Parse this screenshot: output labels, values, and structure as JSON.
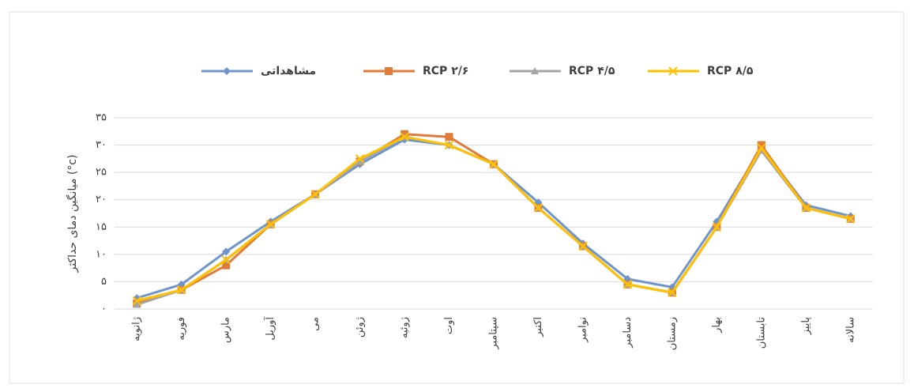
{
  "chart_data": {
    "type": "line",
    "y_label": "میانگین دمای حداکثر (°c)",
    "categories": [
      "ژانویه",
      "فوریه",
      "مارس",
      "آوریل",
      "می",
      "ژوئن",
      "ژوئیه",
      "اوت",
      "سپتامبر",
      "اکتبر",
      "نوامبر",
      "دسامبر",
      "زمستان",
      "بهار",
      "تابستان",
      "پاییز",
      "سالانه"
    ],
    "series": [
      {
        "name": "مشاهداتی",
        "color": "#6f95cc",
        "marker": "diamond",
        "values": [
          2.0,
          4.5,
          10.5,
          16,
          21,
          26.5,
          31,
          30,
          26.5,
          19.5,
          12,
          5.5,
          4,
          16,
          29.5,
          19,
          17
        ]
      },
      {
        "name": "RCP ۲/۶",
        "color": "#e07b39",
        "marker": "square",
        "values": [
          1.0,
          3.5,
          8,
          15.5,
          21,
          27,
          32,
          31.5,
          26.5,
          18.5,
          11.5,
          4.5,
          3,
          15,
          30,
          18.5,
          16.5
        ]
      },
      {
        "name": "RCP ۴/۵",
        "color": "#a5a5a5",
        "marker": "triangle",
        "values": [
          0.8,
          3.5,
          9,
          15.5,
          21,
          27,
          31.5,
          30,
          26.5,
          18.5,
          11.5,
          4.5,
          3,
          15,
          29,
          18.5,
          16.5
        ]
      },
      {
        "name": "RCP ۸/۵",
        "color": "#ffc000",
        "marker": "x",
        "values": [
          1.5,
          3.5,
          9,
          15.5,
          21,
          27.5,
          31.5,
          30,
          26.5,
          18.5,
          11.5,
          4.5,
          3,
          15,
          29.5,
          18.5,
          16.5
        ]
      }
    ],
    "ylim": [
      0,
      35
    ],
    "yticks": [
      {
        "value": 0,
        "label": "۰"
      },
      {
        "value": 5,
        "label": "۵"
      },
      {
        "value": 10,
        "label": "۱۰"
      },
      {
        "value": 15,
        "label": "۱۵"
      },
      {
        "value": 20,
        "label": "۲۰"
      },
      {
        "value": 25,
        "label": "۲۵"
      },
      {
        "value": 30,
        "label": "۳۰"
      },
      {
        "value": 35,
        "label": "۳۵"
      }
    ],
    "grid": true,
    "legend": "top"
  }
}
